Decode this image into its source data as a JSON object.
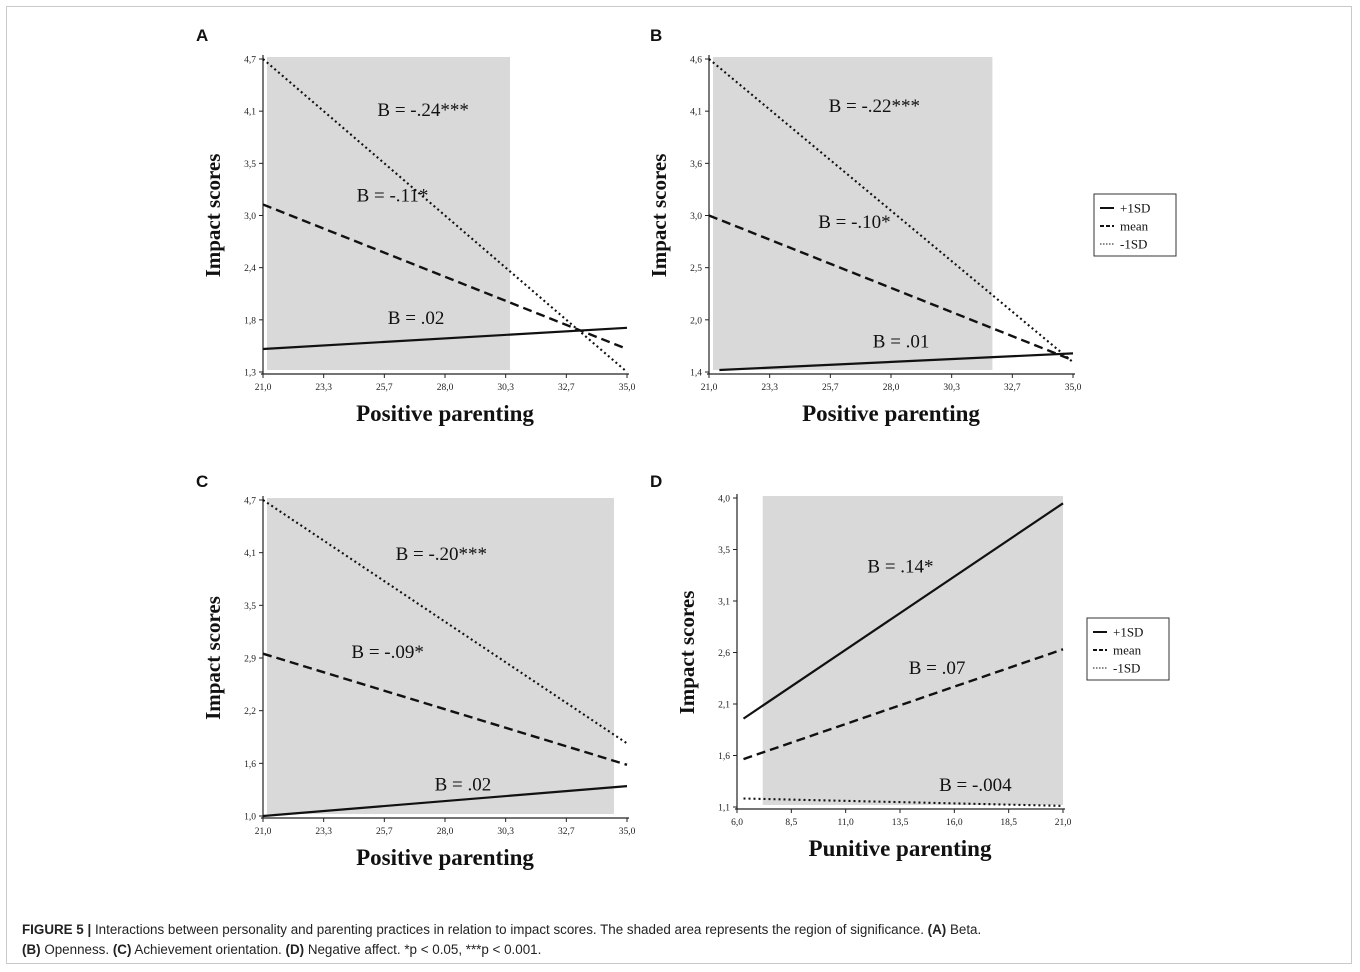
{
  "caption": {
    "figure_label": "FIGURE 5 |",
    "text": " Interactions between personality and parenting practices in relation to impact scores. The shaded area represents the region of significance. ",
    "a_label": "(A)",
    "a_text": " Beta. ",
    "b_label": "(B)",
    "b_text": " Openness. ",
    "c_label": "(C)",
    "c_text": " Achievement orientation. ",
    "d_label": "(D)",
    "d_text": " Negative affect. *p < 0.05, ***p < 0.001."
  },
  "colors": {
    "shade": "#d9d9d9",
    "line": "#111111",
    "frame": "#c9c9c9"
  },
  "chart_data": [
    {
      "panel": "A",
      "type": "line",
      "xlabel": "Positive parenting",
      "ylabel": "Impact scores",
      "xticks": [
        "21,0",
        "23,3",
        "25,7",
        "28,0",
        "30,3",
        "32,7",
        "35,0"
      ],
      "yticks": [
        "1,3",
        "1,8",
        "2,4",
        "3,0",
        "3,5",
        "4,1",
        "4,7"
      ],
      "xlim": [
        21.0,
        35.0
      ],
      "ylim": [
        1.3,
        4.7
      ],
      "significance_region": [
        21.0,
        30.5
      ],
      "series": [
        {
          "style": "solid",
          "x": [
            21.0,
            35.0
          ],
          "y": [
            1.55,
            1.78
          ],
          "annotation": "B = .02",
          "ann_x": 25.8,
          "ann_y": 1.82
        },
        {
          "style": "dashed",
          "x": [
            21.0,
            35.0
          ],
          "y": [
            3.12,
            1.55
          ],
          "annotation": "B = -.11*",
          "ann_x": 24.6,
          "ann_y": 3.15
        },
        {
          "style": "dotted",
          "x": [
            21.0,
            35.0
          ],
          "y": [
            4.7,
            1.3
          ],
          "annotation": "B = -.24***",
          "ann_x": 25.4,
          "ann_y": 4.08
        }
      ],
      "legend": []
    },
    {
      "panel": "B",
      "type": "line",
      "xlabel": "Positive parenting",
      "ylabel": "Impact scores",
      "xticks": [
        "21,0",
        "23,3",
        "25,7",
        "28,0",
        "30,3",
        "32,7",
        "35,0"
      ],
      "yticks": [
        "1,4",
        "2,0",
        "2,5",
        "3,0",
        "3,6",
        "4,1",
        "4,6"
      ],
      "xlim": [
        21.0,
        35.0
      ],
      "ylim": [
        1.4,
        4.6
      ],
      "significance_region": [
        21.0,
        31.9
      ],
      "series": [
        {
          "style": "solid",
          "x": [
            21.4,
            35.0
          ],
          "y": [
            1.42,
            1.59
          ],
          "annotation": "B = .01",
          "ann_x": 27.3,
          "ann_y": 1.65
        },
        {
          "style": "dashed",
          "x": [
            21.0,
            35.0
          ],
          "y": [
            3.0,
            1.52
          ],
          "annotation": "B = -.10*",
          "ann_x": 25.2,
          "ann_y": 2.87
        },
        {
          "style": "dotted",
          "x": [
            21.0,
            35.0
          ],
          "y": [
            4.6,
            1.5
          ],
          "annotation": "B = -.22***",
          "ann_x": 25.6,
          "ann_y": 4.06
        }
      ],
      "legend": [
        "+1SD",
        "mean",
        "-1SD"
      ]
    },
    {
      "panel": "C",
      "type": "line",
      "xlabel": "Positive parenting",
      "ylabel": "Impact scores",
      "xticks": [
        "21,0",
        "23,3",
        "25,7",
        "28,0",
        "30,3",
        "32,7",
        "35,0"
      ],
      "yticks": [
        "1,0",
        "1,6",
        "2,2",
        "2,9",
        "3,5",
        "4,1",
        "4,7"
      ],
      "xlim": [
        21.0,
        35.0
      ],
      "ylim": [
        1.0,
        4.7
      ],
      "significance_region": [
        21.0,
        34.5
      ],
      "series": [
        {
          "style": "solid",
          "x": [
            21.0,
            35.0
          ],
          "y": [
            1.0,
            1.35
          ],
          "annotation": "B = .02",
          "ann_x": 27.6,
          "ann_y": 1.3
        },
        {
          "style": "dashed",
          "x": [
            21.0,
            35.0
          ],
          "y": [
            2.9,
            1.6
          ],
          "annotation": "B = -.09*",
          "ann_x": 24.4,
          "ann_y": 2.85
        },
        {
          "style": "dotted",
          "x": [
            21.0,
            35.0
          ],
          "y": [
            4.7,
            1.85
          ],
          "annotation": "B = -.20***",
          "ann_x": 26.1,
          "ann_y": 4.0
        }
      ],
      "legend": []
    },
    {
      "panel": "D",
      "type": "line",
      "xlabel": "Punitive parenting",
      "ylabel": "Impact scores",
      "xticks": [
        "6,0",
        "8,5",
        "11,0",
        "13,5",
        "16,0",
        "18,5",
        "21,0"
      ],
      "yticks": [
        "1,1",
        "1,6",
        "2,1",
        "2,6",
        "3,1",
        "3,5",
        "4,0"
      ],
      "xlim": [
        6.0,
        21.0
      ],
      "ylim": [
        1.1,
        4.0
      ],
      "significance_region": [
        7.0,
        21.0
      ],
      "series": [
        {
          "style": "solid",
          "x": [
            6.3,
            21.0
          ],
          "y": [
            1.93,
            3.95
          ],
          "annotation": "B = .14*",
          "ann_x": 12.0,
          "ann_y": 3.3
        },
        {
          "style": "dashed",
          "x": [
            6.3,
            21.0
          ],
          "y": [
            1.55,
            2.58
          ],
          "annotation": "B = .07",
          "ann_x": 13.9,
          "ann_y": 2.35
        },
        {
          "style": "dotted",
          "x": [
            6.3,
            21.0
          ],
          "y": [
            1.18,
            1.11
          ],
          "annotation": "B = -.004",
          "ann_x": 15.3,
          "ann_y": 1.25
        }
      ],
      "legend": [
        "+1SD",
        "mean",
        "-1SD"
      ]
    }
  ]
}
